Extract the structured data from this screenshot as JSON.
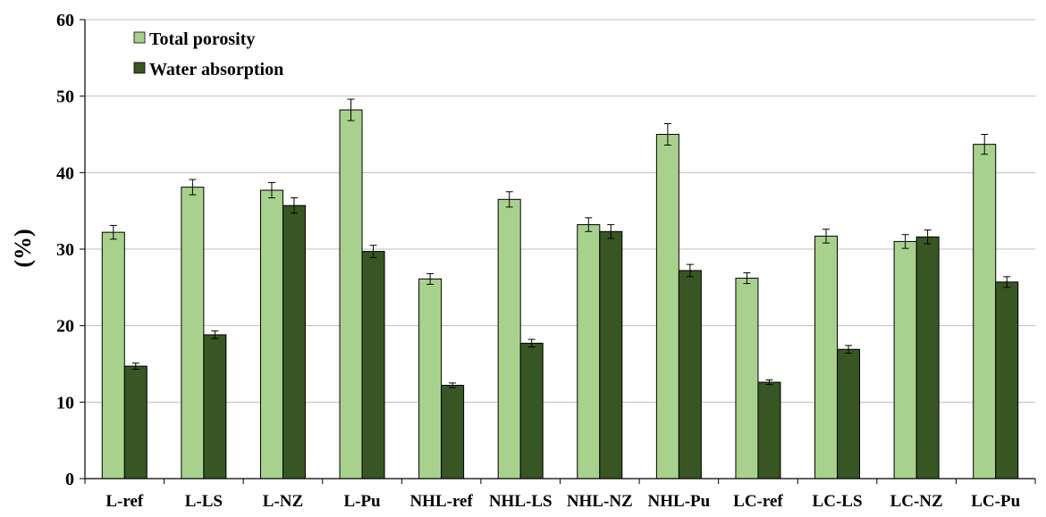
{
  "chart_data": {
    "type": "bar",
    "title": "",
    "xlabel": "",
    "ylabel": "(%)",
    "ylim": [
      0,
      60
    ],
    "yticks": [
      0,
      10,
      20,
      30,
      40,
      50,
      60
    ],
    "grid": true,
    "legend_position": "top-left",
    "categories": [
      "L-ref",
      "L-LS",
      "L-NZ",
      "L-Pu",
      "NHL-ref",
      "NHL-LS",
      "NHL-NZ",
      "NHL-Pu",
      "LC-ref",
      "LC-LS",
      "LC-NZ",
      "LC-Pu"
    ],
    "series": [
      {
        "name": "Total porosity",
        "color": "#a9d18e",
        "values": [
          32.2,
          38.1,
          37.7,
          48.2,
          26.1,
          36.5,
          33.2,
          45.0,
          26.2,
          31.7,
          31.0,
          43.7
        ],
        "errors": [
          0.9,
          1.0,
          1.0,
          1.4,
          0.7,
          1.0,
          0.9,
          1.4,
          0.7,
          0.9,
          0.9,
          1.3
        ]
      },
      {
        "name": "Water absorption",
        "color": "#375623",
        "values": [
          14.7,
          18.8,
          35.7,
          29.7,
          12.2,
          17.7,
          32.3,
          27.2,
          12.6,
          16.9,
          31.6,
          25.7
        ],
        "errors": [
          0.4,
          0.5,
          1.0,
          0.8,
          0.3,
          0.5,
          0.9,
          0.8,
          0.3,
          0.5,
          0.9,
          0.7
        ]
      }
    ]
  }
}
